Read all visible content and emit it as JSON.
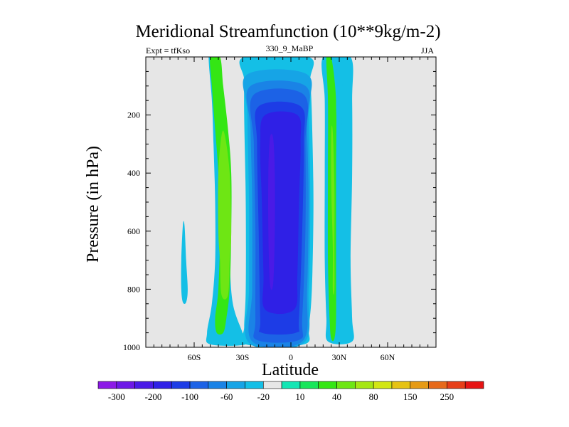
{
  "chart_data": {
    "type": "contour",
    "title": "Meridional Streamfunction (10**9kg/m-2)",
    "left_label": "Expt = tfKso",
    "center_label": "330_9_MaBP",
    "right_label": "JJA",
    "xlabel": "Latitude",
    "ylabel": "Pressure (in hPa)",
    "xlim": [
      -90,
      90
    ],
    "ylim": [
      1000,
      0
    ],
    "x_ticks": [
      {
        "value": -60,
        "label": "60S"
      },
      {
        "value": -30,
        "label": "30S"
      },
      {
        "value": 0,
        "label": "0"
      },
      {
        "value": 30,
        "label": "30N"
      },
      {
        "value": 60,
        "label": "60N"
      }
    ],
    "y_ticks": [
      {
        "value": 200,
        "label": "200"
      },
      {
        "value": 400,
        "label": "400"
      },
      {
        "value": 600,
        "label": "600"
      },
      {
        "value": 800,
        "label": "800"
      },
      {
        "value": 1000,
        "label": "1000"
      }
    ],
    "colorbar": {
      "colors": [
        "#8c1ae6",
        "#6d18e6",
        "#4a1ae6",
        "#2f20e6",
        "#1d3ce6",
        "#1c62e6",
        "#1a83e6",
        "#16a4e6",
        "#14bfe6",
        "#e6e6e6",
        "#14e6b4",
        "#18e65a",
        "#34e614",
        "#6ee614",
        "#a6e614",
        "#d2e614",
        "#e6c314",
        "#e69a14",
        "#e6691a",
        "#e63e18",
        "#e61414"
      ],
      "labels": [
        {
          "after_index": 0,
          "text": "-300"
        },
        {
          "after_index": 2,
          "text": "-200"
        },
        {
          "after_index": 4,
          "text": "-100"
        },
        {
          "after_index": 6,
          "text": "-60"
        },
        {
          "after_index": 8,
          "text": "-20"
        },
        {
          "after_index": 10,
          "text": "10"
        },
        {
          "after_index": 12,
          "text": "40"
        },
        {
          "after_index": 14,
          "text": "80"
        },
        {
          "after_index": 16,
          "text": "150"
        },
        {
          "after_index": 18,
          "text": "250"
        }
      ]
    },
    "background_color": "#e6e6e6",
    "regions": [
      {
        "name": "sh-cyan-band",
        "color": "#14bfe6",
        "p_top": 0,
        "p_bot": 990,
        "profile": [
          [
            0,
            -51,
            -48
          ],
          [
            150,
            -49,
            -43
          ],
          [
            300,
            -48,
            -39
          ],
          [
            500,
            -47,
            -39
          ],
          [
            700,
            -47,
            -38
          ],
          [
            850,
            -49,
            -36
          ],
          [
            950,
            -52,
            -30
          ],
          [
            990,
            -50,
            -28
          ]
        ]
      },
      {
        "name": "sh-green-cell",
        "color": "#34e614",
        "p_top": 0,
        "p_bot": 950,
        "profile": [
          [
            0,
            -50,
            -44
          ],
          [
            100,
            -49,
            -42
          ],
          [
            250,
            -47,
            -39
          ],
          [
            400,
            -45,
            -37
          ],
          [
            600,
            -44,
            -37
          ],
          [
            800,
            -45,
            -38
          ],
          [
            900,
            -47,
            -40
          ],
          [
            950,
            -46,
            -42
          ]
        ]
      },
      {
        "name": "sh-lightgreen-core",
        "color": "#6ee614",
        "p_top": 270,
        "p_bot": 820,
        "profile": [
          [
            270,
            -43,
            -41
          ],
          [
            400,
            -45,
            -38
          ],
          [
            600,
            -45,
            -37
          ],
          [
            700,
            -44,
            -38
          ],
          [
            820,
            -43,
            -39
          ]
        ]
      },
      {
        "name": "sh-small-cyan",
        "color": "#14bfe6",
        "p_top": 580,
        "p_bot": 845,
        "profile": [
          [
            580,
            -67,
            -66
          ],
          [
            700,
            -68,
            -65
          ],
          [
            800,
            -68,
            -64
          ],
          [
            845,
            -67,
            -65
          ]
        ]
      },
      {
        "name": "eq-cyan-outer",
        "color": "#14bfe6",
        "p_top": 0,
        "p_bot": 990,
        "profile": [
          [
            0,
            -29,
            11
          ],
          [
            80,
            -29,
            12
          ],
          [
            200,
            -29,
            13
          ],
          [
            500,
            -28,
            14
          ],
          [
            800,
            -28,
            13
          ],
          [
            930,
            -29,
            11
          ],
          [
            990,
            -28,
            8
          ]
        ]
      },
      {
        "name": "eq-blue-1",
        "color": "#16a4e6",
        "p_top": 60,
        "p_bot": 985,
        "profile": [
          [
            60,
            -27,
            10
          ],
          [
            200,
            -27,
            11
          ],
          [
            500,
            -26,
            12
          ],
          [
            800,
            -26,
            11
          ],
          [
            985,
            -26,
            8
          ]
        ]
      },
      {
        "name": "eq-blue-2",
        "color": "#1a83e6",
        "p_top": 100,
        "p_bot": 980,
        "profile": [
          [
            100,
            -25,
            9
          ],
          [
            250,
            -25,
            10
          ],
          [
            500,
            -24,
            11
          ],
          [
            800,
            -24,
            10
          ],
          [
            980,
            -24,
            7
          ]
        ]
      },
      {
        "name": "eq-blue-3",
        "color": "#1c62e6",
        "p_top": 130,
        "p_bot": 975,
        "profile": [
          [
            130,
            -23,
            8
          ],
          [
            300,
            -23,
            9
          ],
          [
            600,
            -22,
            9
          ],
          [
            900,
            -22,
            7
          ],
          [
            975,
            -21,
            5
          ]
        ]
      },
      {
        "name": "eq-blue-4",
        "color": "#1d3ce6",
        "p_top": 170,
        "p_bot": 950,
        "profile": [
          [
            170,
            -20,
            6
          ],
          [
            300,
            -21,
            8
          ],
          [
            600,
            -20,
            7
          ],
          [
            900,
            -19,
            5
          ],
          [
            950,
            -18,
            3
          ]
        ]
      },
      {
        "name": "eq-blue-5",
        "color": "#2f20e6",
        "p_top": 200,
        "p_bot": 870,
        "profile": [
          [
            200,
            -16,
            4
          ],
          [
            300,
            -19,
            6
          ],
          [
            500,
            -18,
            5
          ],
          [
            750,
            -17,
            4
          ],
          [
            870,
            -16,
            2
          ]
        ]
      },
      {
        "name": "eq-blue-6",
        "color": "#4a1ae6",
        "p_top": 280,
        "p_bot": 780,
        "profile": [
          [
            280,
            -13,
            -11
          ],
          [
            400,
            -14,
            -10
          ],
          [
            600,
            -14,
            -10
          ],
          [
            780,
            -13,
            -11
          ]
        ]
      },
      {
        "name": "nh-cyan-band",
        "color": "#14bfe6",
        "p_top": 0,
        "p_bot": 980,
        "profile": [
          [
            0,
            20,
            37
          ],
          [
            150,
            21,
            38
          ],
          [
            400,
            21,
            38
          ],
          [
            700,
            21,
            37
          ],
          [
            900,
            22,
            38
          ],
          [
            980,
            23,
            38
          ]
        ]
      },
      {
        "name": "nh-green-cell",
        "color": "#34e614",
        "p_top": 0,
        "p_bot": 970,
        "profile": [
          [
            0,
            22,
            25
          ],
          [
            150,
            23,
            28
          ],
          [
            400,
            23,
            28
          ],
          [
            700,
            23,
            28
          ],
          [
            900,
            24,
            28
          ],
          [
            970,
            25,
            27
          ]
        ]
      },
      {
        "name": "nh-lightgreen-core",
        "color": "#6ee614",
        "p_top": 260,
        "p_bot": 800,
        "profile": [
          [
            260,
            25,
            26
          ],
          [
            450,
            25,
            27
          ],
          [
            650,
            26,
            27
          ],
          [
            800,
            26,
            27
          ]
        ]
      },
      {
        "name": "nh-small-cyan",
        "color": "#14bfe6",
        "p_top": 0,
        "p_bot": 250,
        "profile": [
          [
            0,
            29,
            32
          ],
          [
            150,
            28,
            32
          ],
          [
            250,
            29,
            31
          ]
        ]
      }
    ]
  }
}
